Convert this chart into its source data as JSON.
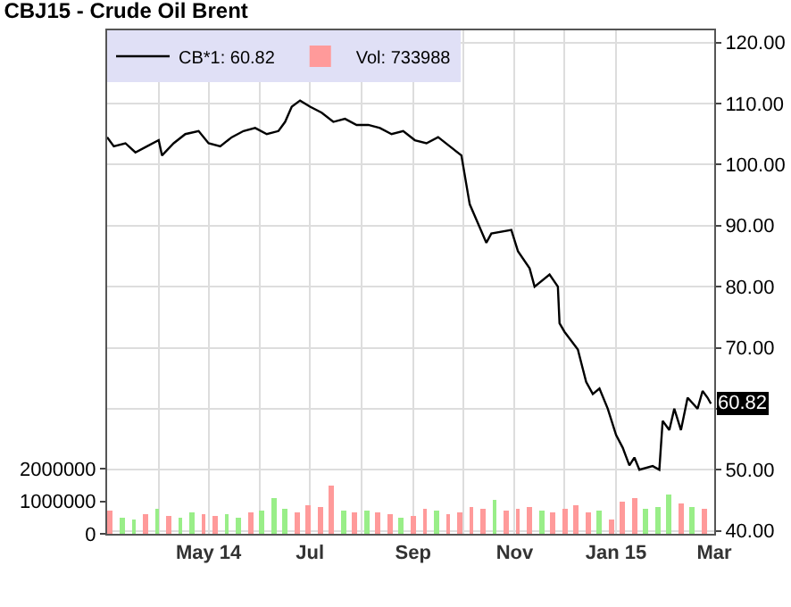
{
  "chart_data": {
    "type": "line",
    "title": "CBJ15 - Crude Oil Brent",
    "xlim": [
      "2014-03-01",
      "2015-03-01"
    ],
    "xticks": [
      {
        "value": "2014-04-01",
        "label": null
      },
      {
        "value": "2014-05-01",
        "label": "May 14"
      },
      {
        "value": "2014-06-01",
        "label": null
      },
      {
        "value": "2014-07-01",
        "label": "Jul"
      },
      {
        "value": "2014-08-01",
        "label": null
      },
      {
        "value": "2014-09-01",
        "label": "Sep"
      },
      {
        "value": "2014-10-01",
        "label": null
      },
      {
        "value": "2014-11-01",
        "label": "Nov"
      },
      {
        "value": "2014-12-01",
        "label": null
      },
      {
        "value": "2015-01-01",
        "label": "Jan 15"
      },
      {
        "value": "2015-03-01",
        "label": "Mar"
      }
    ],
    "ylim": [
      39.5,
      122
    ],
    "yticks": [
      {
        "value": 40,
        "label": "40.00"
      },
      {
        "value": 50,
        "label": "50.00"
      },
      {
        "value": 60,
        "label": null
      },
      {
        "value": 70,
        "label": "70.00"
      },
      {
        "value": 80,
        "label": "80.00"
      },
      {
        "value": 90,
        "label": "90.00"
      },
      {
        "value": 100,
        "label": "100.00"
      },
      {
        "value": 110,
        "label": "110.00"
      },
      {
        "value": 120,
        "label": "120.00"
      }
    ],
    "y2lim": [
      0,
      15500000
    ],
    "y2ticks": [
      0,
      1000000,
      2000000
    ],
    "grid": true,
    "legend": "top left",
    "marker": "none",
    "line_style": "solid",
    "annotations": [
      {
        "text": "60.82",
        "x": "2015-02-27",
        "y": 60.82
      }
    ],
    "series": [
      {
        "name": "CB*1: 60.82",
        "color": "#000000",
        "x": [
          "2014-03-01",
          "2014-03-05",
          "2014-03-12",
          "2014-03-18",
          "2014-03-25",
          "2014-04-01",
          "2014-04-03",
          "2014-04-10",
          "2014-04-17",
          "2014-04-25",
          "2014-05-01",
          "2014-05-08",
          "2014-05-15",
          "2014-05-22",
          "2014-05-29",
          "2014-06-05",
          "2014-06-12",
          "2014-06-16",
          "2014-06-20",
          "2014-06-25",
          "2014-07-01",
          "2014-07-08",
          "2014-07-15",
          "2014-07-22",
          "2014-07-29",
          "2014-08-05",
          "2014-08-12",
          "2014-08-19",
          "2014-08-26",
          "2014-09-02",
          "2014-09-09",
          "2014-09-16",
          "2014-09-23",
          "2014-09-30",
          "2014-10-05",
          "2014-10-15",
          "2014-10-18",
          "2014-10-30",
          "2014-11-03",
          "2014-11-10",
          "2014-11-13",
          "2014-11-22",
          "2014-11-27",
          "2014-11-28",
          "2014-12-01",
          "2014-12-09",
          "2014-12-14",
          "2014-12-18",
          "2014-12-22",
          "2014-12-27",
          "2015-01-01",
          "2015-01-05",
          "2015-01-09",
          "2015-01-12",
          "2015-01-15",
          "2015-01-23",
          "2015-01-27",
          "2015-01-29",
          "2015-02-02",
          "2015-02-05",
          "2015-02-09",
          "2015-02-13",
          "2015-02-19",
          "2015-02-22",
          "2015-02-25",
          "2015-02-27"
        ],
        "values": [
          104.5,
          103,
          103.5,
          102,
          103,
          104,
          101.5,
          103.5,
          105,
          105.5,
          103.5,
          103,
          104.5,
          105.5,
          106,
          105,
          105.5,
          107,
          109.5,
          110.5,
          109.5,
          108.5,
          107,
          107.5,
          106.5,
          106.5,
          106,
          105,
          105.5,
          104,
          103.5,
          104.5,
          103,
          101.5,
          93.5,
          87.2,
          88.7,
          89.3,
          85.8,
          83,
          80,
          82,
          80,
          74,
          72.6,
          69.7,
          64.4,
          62.4,
          63.3,
          60,
          55.7,
          53.6,
          50.7,
          52,
          50,
          50.6,
          50,
          58,
          56.5,
          60,
          56.5,
          61.8,
          60,
          62.9,
          61.8,
          60.82
        ]
      },
      {
        "name": "Vol: 733988",
        "type": "bar",
        "axis": "y2",
        "x": [
          "2014-03-03",
          "2014-03-10",
          "2014-03-17",
          "2014-03-24",
          "2014-03-31",
          "2014-04-07",
          "2014-04-14",
          "2014-04-21",
          "2014-04-28",
          "2014-05-05",
          "2014-05-12",
          "2014-05-19",
          "2014-05-26",
          "2014-06-02",
          "2014-06-09",
          "2014-06-16",
          "2014-06-23",
          "2014-06-30",
          "2014-07-07",
          "2014-07-14",
          "2014-07-21",
          "2014-07-28",
          "2014-08-04",
          "2014-08-11",
          "2014-08-18",
          "2014-08-25",
          "2014-09-01",
          "2014-09-08",
          "2014-09-15",
          "2014-09-22",
          "2014-09-29",
          "2014-10-06",
          "2014-10-13",
          "2014-10-20",
          "2014-10-27",
          "2014-11-03",
          "2014-11-10",
          "2014-11-17",
          "2014-11-24",
          "2014-12-01",
          "2014-12-08",
          "2014-12-15",
          "2014-12-22",
          "2014-12-29",
          "2015-01-05",
          "2015-01-12",
          "2015-01-19",
          "2015-01-26",
          "2015-02-02",
          "2015-02-09",
          "2015-02-16",
          "2015-02-23"
        ],
        "values": [
          700000,
          500000,
          450000,
          600000,
          750000,
          550000,
          500000,
          650000,
          600000,
          550000,
          600000,
          500000,
          650000,
          700000,
          1100000,
          750000,
          650000,
          900000,
          800000,
          1500000,
          700000,
          650000,
          700000,
          650000,
          600000,
          500000,
          550000,
          750000,
          700000,
          600000,
          650000,
          800000,
          750000,
          1050000,
          700000,
          750000,
          850000,
          700000,
          650000,
          750000,
          900000,
          650000,
          700000,
          450000,
          1000000,
          1100000,
          750000,
          800000,
          1200000,
          950000,
          800000,
          750000
        ],
        "colors": [
          "#ff9a9a",
          "#99ee88",
          "#99ee88",
          "#ff9a9a",
          "#99ee88",
          "#ff9a9a",
          "#99ee88",
          "#99ee88",
          "#ff9a9a",
          "#ff9a9a",
          "#99ee88",
          "#99ee88",
          "#ff9a9a",
          "#99ee88",
          "#99ee88",
          "#99ee88",
          "#ff9a9a",
          "#ff9a9a",
          "#ff9a9a",
          "#ff9a9a",
          "#99ee88",
          "#ff9a9a",
          "#99ee88",
          "#ff9a9a",
          "#ff9a9a",
          "#99ee88",
          "#ff9a9a",
          "#ff9a9a",
          "#99ee88",
          "#ff9a9a",
          "#ff9a9a",
          "#ff9a9a",
          "#ff9a9a",
          "#99ee88",
          "#ff9a9a",
          "#ff9a9a",
          "#ff9a9a",
          "#99ee88",
          "#ff9a9a",
          "#ff9a9a",
          "#ff9a9a",
          "#ff9a9a",
          "#99ee88",
          "#ff9a9a",
          "#ff9a9a",
          "#ff9a9a",
          "#99ee88",
          "#99ee88",
          "#99ee88",
          "#ff9a9a",
          "#99ee88",
          "#ff9a9a"
        ]
      }
    ]
  }
}
